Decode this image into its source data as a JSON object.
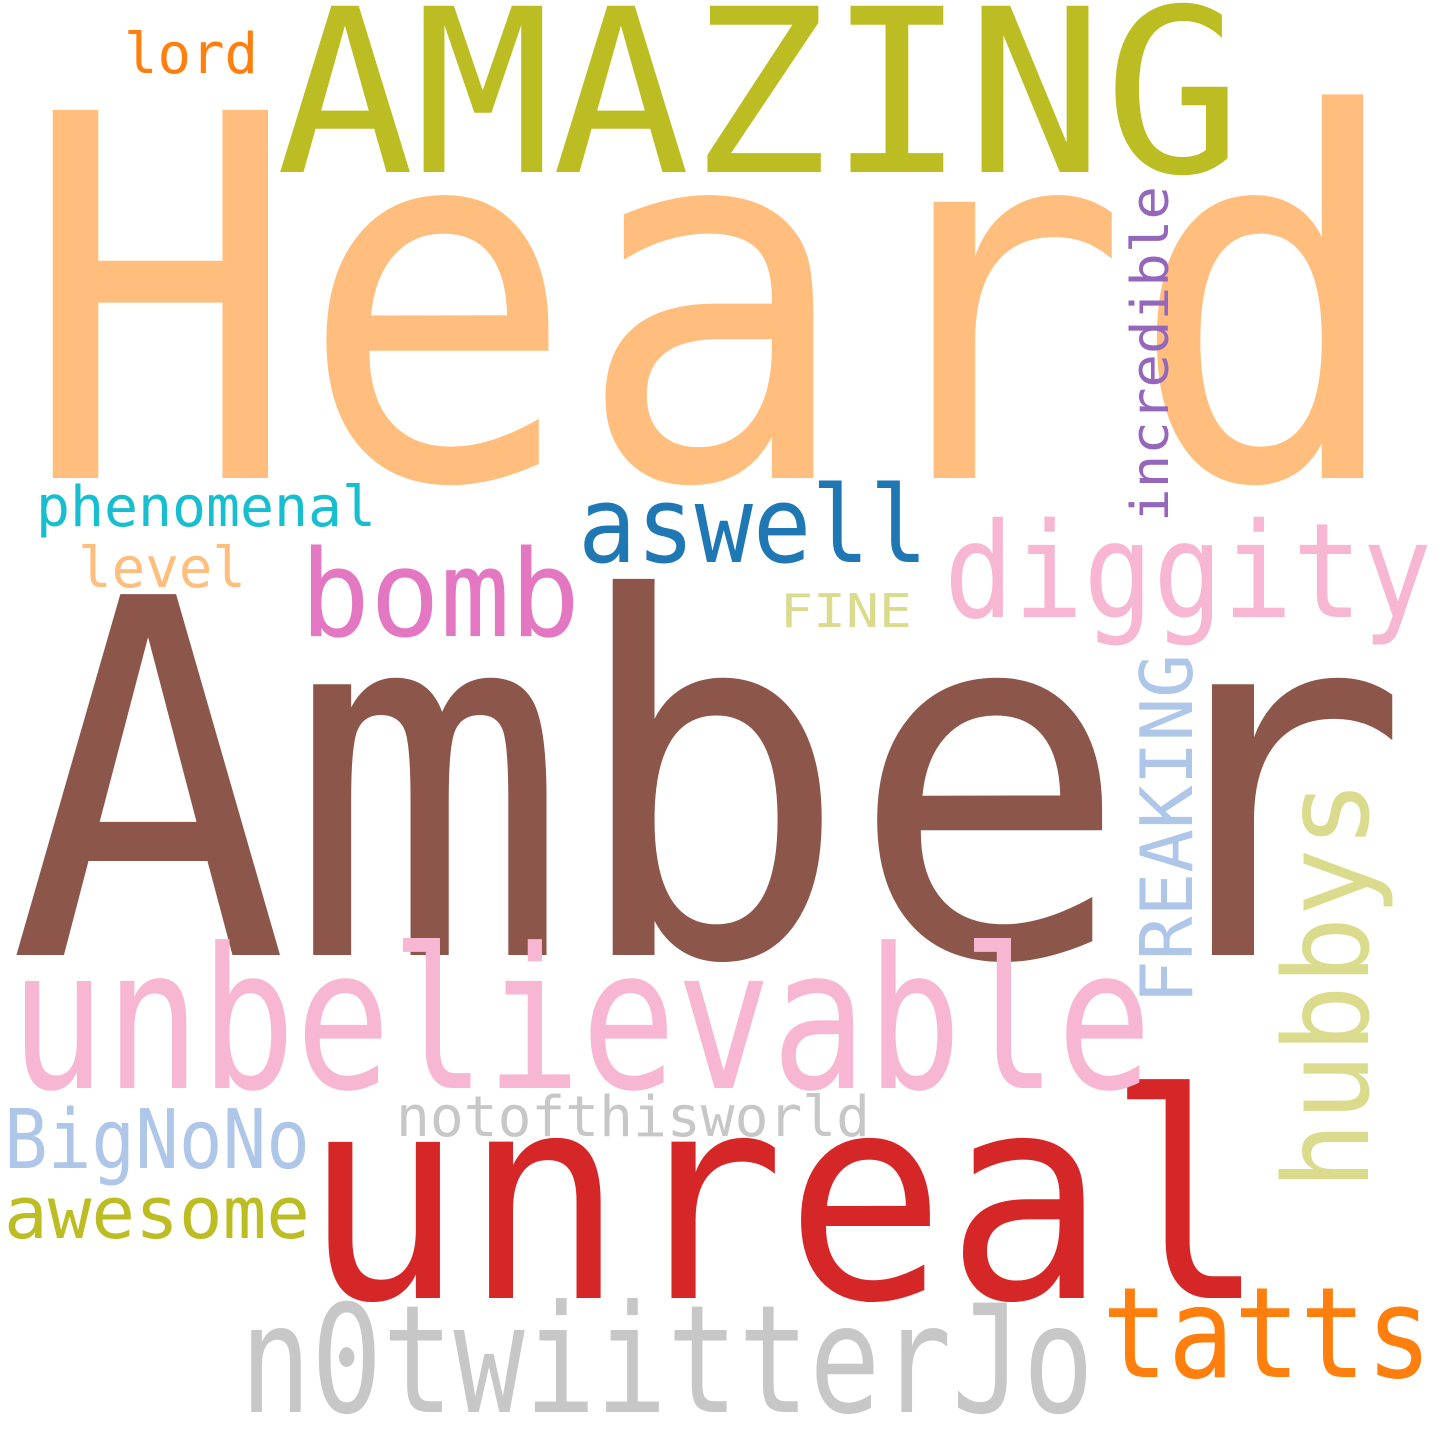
{
  "words": [
    {
      "key": "heard",
      "text": "Heard",
      "color": "#ffbe7d"
    },
    {
      "key": "amber",
      "text": "Amber",
      "color": "#8c564b"
    },
    {
      "key": "amazing",
      "text": "AMAZING",
      "color": "#bcbd22"
    },
    {
      "key": "unreal",
      "text": "unreal",
      "color": "#d62728"
    },
    {
      "key": "unbelievable",
      "text": "unbelievable",
      "color": "#f7b6d2"
    },
    {
      "key": "n0twiitterjo",
      "text": "n0twiitterJo",
      "color": "#c7c7c7"
    },
    {
      "key": "diggity",
      "text": "diggity",
      "color": "#f7b6d2"
    },
    {
      "key": "hubbys",
      "text": "hubbys",
      "color": "#dbdb8d"
    },
    {
      "key": "tatts",
      "text": "tatts",
      "color": "#ff7f0e"
    },
    {
      "key": "bomb",
      "text": "bomb",
      "color": "#e377c2"
    },
    {
      "key": "aswell",
      "text": "aswell",
      "color": "#1f77b4"
    },
    {
      "key": "freaking",
      "text": "FREAKING",
      "color": "#aec7e8"
    },
    {
      "key": "bignono",
      "text": "BigNoNo",
      "color": "#aec7e8"
    },
    {
      "key": "awesome",
      "text": "awesome",
      "color": "#bcbd22"
    },
    {
      "key": "incredible",
      "text": "incredible",
      "color": "#9467bd"
    },
    {
      "key": "notofthisworld",
      "text": "notofthisworld",
      "color": "#c7c7c7"
    },
    {
      "key": "phenomenal",
      "text": "phenomenal",
      "color": "#17becf"
    },
    {
      "key": "level",
      "text": "level",
      "color": "#ffbe7d"
    },
    {
      "key": "lord",
      "text": "lord",
      "color": "#ff7f0e"
    },
    {
      "key": "fine",
      "text": "FINE",
      "color": "#dbdb8d"
    }
  ]
}
